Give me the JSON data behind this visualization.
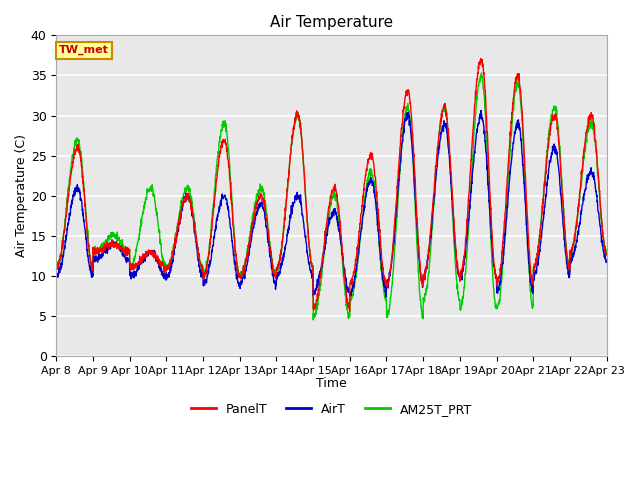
{
  "title": "Air Temperature",
  "xlabel": "Time",
  "ylabel": "Air Temperature (C)",
  "ylim": [
    0,
    40
  ],
  "plot_bg_color": "#e8e8e8",
  "grid_color": "white",
  "annotation_text": "TW_met",
  "annotation_bg": "#ffff99",
  "annotation_border": "#cc8800",
  "annotation_text_color": "#cc0000",
  "legend_entries": [
    "PanelT",
    "AirT",
    "AM25T_PRT"
  ],
  "line_colors": {
    "PanelT": "#ff0000",
    "AirT": "#0000cc",
    "AM25T_PRT": "#00cc00"
  },
  "x_tick_labels": [
    "Apr 8",
    "Apr 9",
    "Apr 10",
    "Apr 11",
    "Apr 12",
    "Apr 13",
    "Apr 14",
    "Apr 15",
    "Apr 16",
    "Apr 17",
    "Apr 18",
    "Apr 19",
    "Apr 20",
    "Apr 21",
    "Apr 22",
    "Apr 23"
  ],
  "y_tick_labels": [
    0,
    5,
    10,
    15,
    20,
    25,
    30,
    35,
    40
  ],
  "days": 15,
  "points_per_day": 144,
  "day_peaks_panel": [
    26,
    14,
    13,
    20,
    27,
    20,
    30,
    21,
    25,
    33,
    31,
    37,
    35,
    30,
    30
  ],
  "day_mins_panel": [
    11,
    13,
    11,
    11,
    10,
    10,
    11,
    6,
    9,
    9,
    10,
    10,
    9,
    11,
    13
  ],
  "day_peaks_air": [
    21,
    14,
    13,
    20,
    20,
    19,
    20,
    18,
    22,
    30,
    29,
    30,
    29,
    26,
    23
  ],
  "day_mins_air": [
    10,
    12,
    10,
    10,
    9,
    9,
    10,
    8,
    8,
    9,
    10,
    10,
    8,
    10,
    12
  ],
  "day_peaks_am25": [
    27,
    15,
    21,
    21,
    29,
    21,
    30,
    20,
    23,
    31,
    31,
    35,
    34,
    31,
    29
  ],
  "day_mins_am25": [
    11,
    13,
    11,
    11,
    10,
    10,
    11,
    5,
    7,
    5,
    7,
    6,
    6,
    11,
    13
  ],
  "peak_time": 0.58,
  "figsize": [
    6.4,
    4.8
  ],
  "dpi": 100
}
